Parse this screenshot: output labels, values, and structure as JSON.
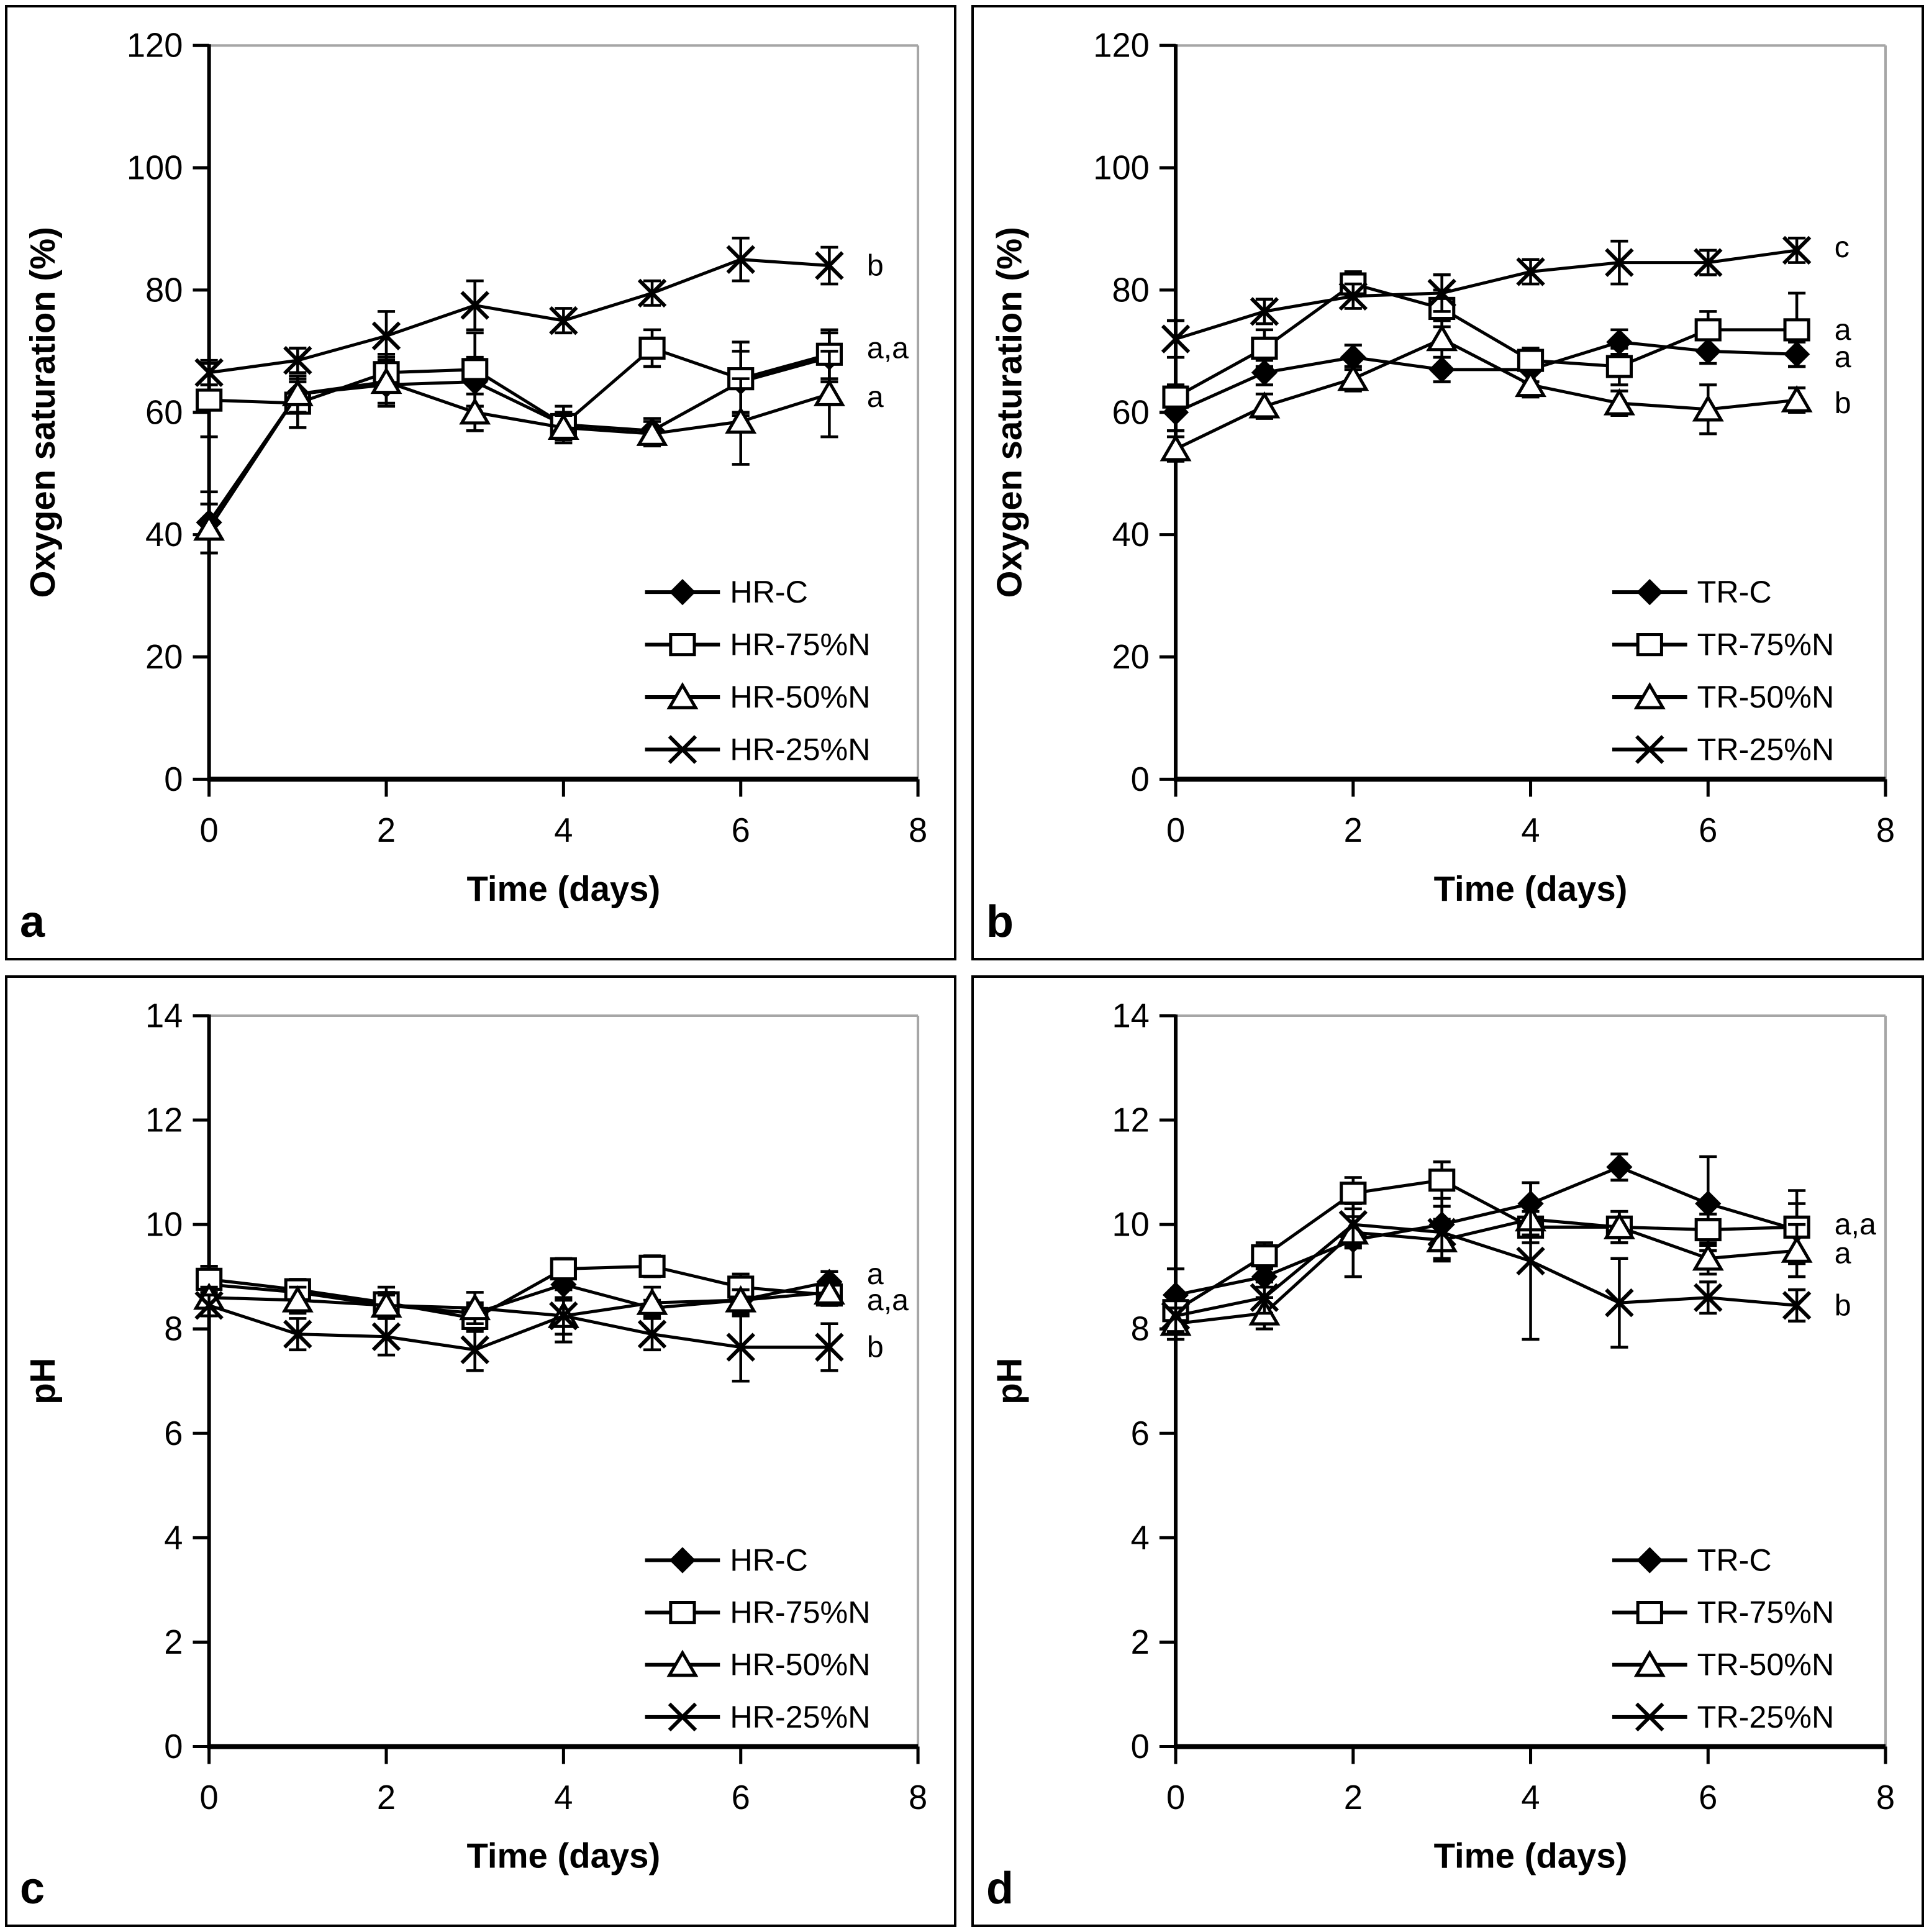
{
  "figure": {
    "background": "#ffffff",
    "frame_color": "#000000",
    "plot_border_color": "#a6a6a6",
    "line_color": "#000000",
    "x_axis_label": "Time (days)",
    "marker_glossary": {
      "filled-diamond": "control series",
      "open-square": "75%N series",
      "open-triangle": "50%N series",
      "x-star": "25%N series"
    }
  },
  "chart_data": [
    {
      "type": "line",
      "panel_letter": "a",
      "xlabel": "Time (days)",
      "ylabel": "Oxygen saturation (%)",
      "xlim": [
        0,
        8
      ],
      "ylim": [
        0,
        120
      ],
      "xticks": [
        0,
        2,
        4,
        6,
        8
      ],
      "yticks": [
        0,
        20,
        40,
        60,
        80,
        100,
        120
      ],
      "x": [
        0,
        1,
        2,
        3,
        4,
        5,
        6,
        7
      ],
      "series": [
        {
          "name": "HR-C",
          "marker": "filled-diamond",
          "values": [
            42,
            63,
            64.5,
            65,
            58,
            57,
            65,
            69
          ],
          "errors": [
            5,
            2,
            3,
            4,
            2,
            2,
            5,
            4
          ]
        },
        {
          "name": "HR-75%N",
          "marker": "open-square",
          "values": [
            62,
            61.5,
            66.5,
            67,
            58,
            70.5,
            65.5,
            69.5
          ],
          "errors": [
            6,
            4,
            3,
            6,
            3,
            3,
            6,
            4
          ]
        },
        {
          "name": "HR-50%N",
          "marker": "open-triangle",
          "values": [
            41,
            63,
            65,
            60,
            57.5,
            56.5,
            58.5,
            63
          ],
          "errors": [
            4,
            3,
            4,
            3,
            2,
            2,
            7,
            7
          ]
        },
        {
          "name": "HR-25%N",
          "marker": "x-star",
          "values": [
            66.5,
            68.5,
            72.5,
            77.5,
            75,
            79.5,
            85,
            84
          ],
          "errors": [
            2,
            2,
            4,
            4,
            2,
            2,
            3.5,
            3
          ]
        }
      ],
      "legend": [
        "HR-C",
        "HR-75%N",
        "HR-50%N",
        "HR-25%N"
      ],
      "significance_labels": [
        {
          "text": "b",
          "y": 84
        },
        {
          "text": "a,a",
          "y": 70.5
        },
        {
          "text": "a",
          "y": 62.5
        }
      ]
    },
    {
      "type": "line",
      "panel_letter": "b",
      "xlabel": "Time (days)",
      "ylabel": "Oxygen saturation (%)",
      "xlim": [
        0,
        8
      ],
      "ylim": [
        0,
        120
      ],
      "xticks": [
        0,
        2,
        4,
        6,
        8
      ],
      "yticks": [
        0,
        20,
        40,
        60,
        80,
        100,
        120
      ],
      "x": [
        0,
        1,
        2,
        3,
        4,
        5,
        6,
        7
      ],
      "series": [
        {
          "name": "TR-C",
          "marker": "filled-diamond",
          "values": [
            60,
            66.5,
            69,
            67,
            67,
            71.5,
            70,
            69.5
          ],
          "errors": [
            3,
            2,
            2,
            2,
            2,
            2,
            2,
            2
          ]
        },
        {
          "name": "TR-75%N",
          "marker": "open-square",
          "values": [
            62.5,
            70.5,
            81,
            77,
            68.5,
            67.5,
            73.5,
            73.5
          ],
          "errors": [
            2,
            3,
            2,
            3,
            2,
            3,
            3,
            6
          ]
        },
        {
          "name": "TR-50%N",
          "marker": "open-triangle",
          "values": [
            54,
            61,
            65.5,
            72,
            64.5,
            61.5,
            60.5,
            62
          ],
          "errors": [
            2,
            2,
            2,
            3,
            2,
            2,
            4,
            2
          ]
        },
        {
          "name": "TR-25%N",
          "marker": "x-star",
          "values": [
            72,
            76.5,
            79,
            79.5,
            83,
            84.5,
            84.5,
            86.5
          ],
          "errors": [
            3,
            2,
            2,
            3,
            2,
            3.5,
            2,
            2
          ]
        }
      ],
      "legend": [
        "TR-C",
        "TR-75%N",
        "TR-50%N",
        "TR-25%N"
      ],
      "significance_labels": [
        {
          "text": "c",
          "y": 87
        },
        {
          "text": "a",
          "y": 73.5
        },
        {
          "text": "a",
          "y": 69
        },
        {
          "text": "b",
          "y": 61.5
        }
      ]
    },
    {
      "type": "line",
      "panel_letter": "c",
      "xlabel": "Time (days)",
      "ylabel": "pH",
      "xlim": [
        0,
        8
      ],
      "ylim": [
        0,
        14
      ],
      "xticks": [
        0,
        2,
        4,
        6,
        8
      ],
      "yticks": [
        0,
        2,
        4,
        6,
        8,
        10,
        12,
        14
      ],
      "x": [
        0,
        1,
        2,
        3,
        4,
        5,
        6,
        7
      ],
      "series": [
        {
          "name": "HR-C",
          "marker": "filled-diamond",
          "values": [
            8.85,
            8.7,
            8.45,
            8.3,
            8.85,
            8.4,
            8.55,
            8.9
          ],
          "errors": [
            0.35,
            0.2,
            0.25,
            0.2,
            0.3,
            0.15,
            0.3,
            0.2
          ]
        },
        {
          "name": "HR-75%N",
          "marker": "open-square",
          "values": [
            8.95,
            8.75,
            8.5,
            8.2,
            9.15,
            9.2,
            8.8,
            8.65
          ],
          "errors": [
            0.25,
            0.2,
            0.3,
            0.25,
            0.2,
            0.2,
            0.25,
            0.2
          ]
        },
        {
          "name": "HR-50%N",
          "marker": "open-triangle",
          "values": [
            8.6,
            8.55,
            8.45,
            8.4,
            8.25,
            8.5,
            8.55,
            8.7
          ],
          "errors": [
            0.2,
            0.25,
            0.2,
            0.3,
            0.35,
            0.3,
            0.2,
            0.25
          ]
        },
        {
          "name": "HR-25%N",
          "marker": "x-star",
          "values": [
            8.45,
            7.9,
            7.85,
            7.6,
            8.25,
            7.9,
            7.65,
            7.65
          ],
          "errors": [
            0.2,
            0.3,
            0.35,
            0.4,
            0.5,
            0.3,
            0.65,
            0.45
          ]
        }
      ],
      "legend": [
        "HR-C",
        "HR-75%N",
        "HR-50%N",
        "HR-25%N"
      ],
      "significance_labels": [
        {
          "text": "a",
          "y": 9.05
        },
        {
          "text": "a,a",
          "y": 8.55
        },
        {
          "text": "b",
          "y": 7.65
        }
      ]
    },
    {
      "type": "line",
      "panel_letter": "d",
      "xlabel": "Time (days)",
      "ylabel": "pH",
      "xlim": [
        0,
        8
      ],
      "ylim": [
        0,
        14
      ],
      "xticks": [
        0,
        2,
        4,
        6,
        8
      ],
      "yticks": [
        0,
        2,
        4,
        6,
        8,
        10,
        12,
        14
      ],
      "x": [
        0,
        1,
        2,
        3,
        4,
        5,
        6,
        7
      ],
      "series": [
        {
          "name": "TR-C",
          "marker": "filled-diamond",
          "values": [
            8.65,
            9.0,
            9.7,
            10.0,
            10.4,
            11.1,
            10.4,
            9.9
          ],
          "errors": [
            0.5,
            0.2,
            0.7,
            0.5,
            0.4,
            0.25,
            0.9,
            0.5
          ]
        },
        {
          "name": "TR-75%N",
          "marker": "open-square",
          "values": [
            8.35,
            9.4,
            10.6,
            10.85,
            9.95,
            9.95,
            9.9,
            9.95
          ],
          "errors": [
            0.3,
            0.25,
            0.3,
            0.35,
            0.3,
            0.3,
            0.3,
            0.7
          ]
        },
        {
          "name": "TR-50%N",
          "marker": "open-triangle",
          "values": [
            8.1,
            8.3,
            9.85,
            9.7,
            10.1,
            9.95,
            9.35,
            9.5
          ],
          "errors": [
            0.3,
            0.3,
            0.3,
            0.4,
            0.3,
            0.3,
            0.3,
            0.5
          ]
        },
        {
          "name": "TR-25%N",
          "marker": "x-star",
          "values": [
            8.25,
            8.6,
            10.0,
            9.85,
            9.3,
            8.5,
            8.6,
            8.45
          ],
          "errors": [
            0.3,
            0.3,
            0.4,
            0.5,
            1.5,
            0.85,
            0.3,
            0.3
          ]
        }
      ],
      "legend": [
        "TR-C",
        "TR-75%N",
        "TR-50%N",
        "TR-25%N"
      ],
      "significance_labels": [
        {
          "text": "a,a",
          "y": 10.0
        },
        {
          "text": "a",
          "y": 9.45
        },
        {
          "text": "b",
          "y": 8.45
        }
      ]
    }
  ]
}
